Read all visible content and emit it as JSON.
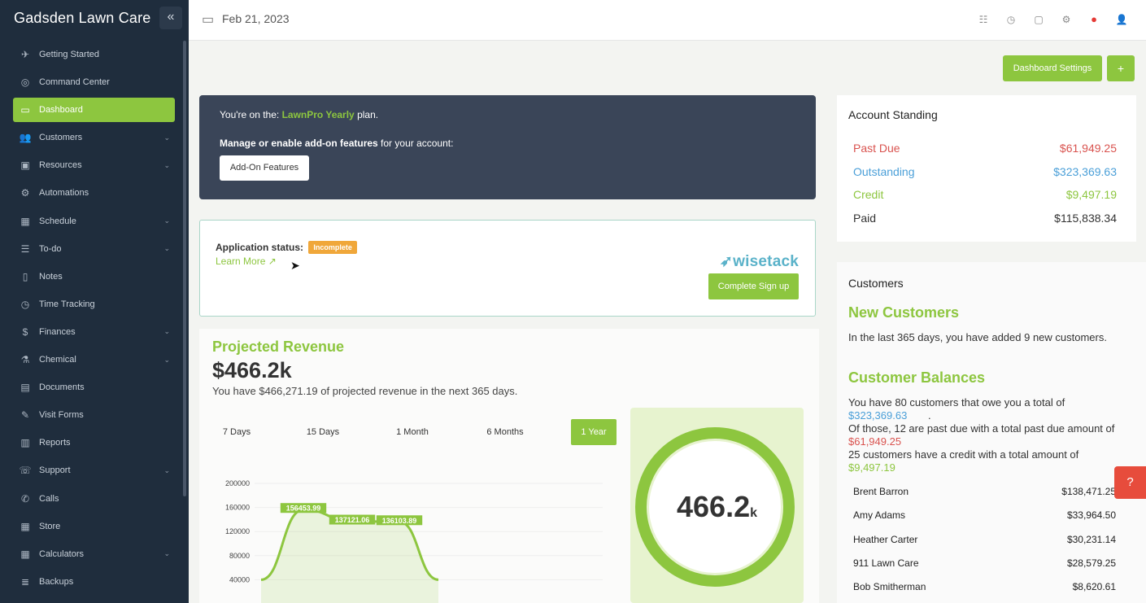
{
  "sidebar": {
    "brand": "Gadsden Lawn Care",
    "items": [
      {
        "label": "Getting Started",
        "icon": "rocket-icon",
        "glyph": "✈",
        "chevron": false
      },
      {
        "label": "Command Center",
        "icon": "command-icon",
        "glyph": "◎",
        "chevron": false
      },
      {
        "label": "Dashboard",
        "icon": "monitor-icon",
        "glyph": "▭",
        "chevron": false,
        "active": true
      },
      {
        "label": "Customers",
        "icon": "users-icon",
        "glyph": "👥",
        "chevron": true
      },
      {
        "label": "Resources",
        "icon": "box-icon",
        "glyph": "▣",
        "chevron": true
      },
      {
        "label": "Automations",
        "icon": "cogs-icon",
        "glyph": "⚙",
        "chevron": false
      },
      {
        "label": "Schedule",
        "icon": "calendar-icon",
        "glyph": "▦",
        "chevron": true
      },
      {
        "label": "To-do",
        "icon": "checklist-icon",
        "glyph": "☰",
        "chevron": true
      },
      {
        "label": "Notes",
        "icon": "clipboard-icon",
        "glyph": "▯",
        "chevron": false
      },
      {
        "label": "Time Tracking",
        "icon": "clock-icon",
        "glyph": "◷",
        "chevron": false
      },
      {
        "label": "Finances",
        "icon": "dollar-icon",
        "glyph": "$",
        "chevron": true
      },
      {
        "label": "Chemical",
        "icon": "flask-icon",
        "glyph": "⚗",
        "chevron": true
      },
      {
        "label": "Documents",
        "icon": "document-icon",
        "glyph": "▤",
        "chevron": false
      },
      {
        "label": "Visit Forms",
        "icon": "edit-icon",
        "glyph": "✎",
        "chevron": false
      },
      {
        "label": "Reports",
        "icon": "bar-chart-icon",
        "glyph": "▥",
        "chevron": false
      },
      {
        "label": "Support",
        "icon": "support-icon",
        "glyph": "☏",
        "chevron": true
      },
      {
        "label": "Calls",
        "icon": "phone-icon",
        "glyph": "✆",
        "chevron": false
      },
      {
        "label": "Store",
        "icon": "store-icon",
        "glyph": "▦",
        "chevron": false
      },
      {
        "label": "Calculators",
        "icon": "calculator-icon",
        "glyph": "▦",
        "chevron": true
      },
      {
        "label": "Backups",
        "icon": "database-icon",
        "glyph": "≣",
        "chevron": false
      }
    ]
  },
  "topbar": {
    "date": "Feb 21, 2023",
    "icons": [
      "list-icon",
      "history-icon",
      "chat-icon",
      "gear-icon",
      "record-icon",
      "user-icon"
    ]
  },
  "actions": {
    "dashboard_settings": "Dashboard Settings",
    "add": "+"
  },
  "plan": {
    "prefix": "You're on the: ",
    "plan_name": "LawnPro Yearly",
    "suffix": " plan.",
    "manage_bold": "Manage or enable add-on features",
    "manage_rest": " for your account:",
    "addon_button": "Add-On Features"
  },
  "wisetack": {
    "status_label": "Application status:",
    "status_badge": "Incomplete",
    "learn_more": "Learn More",
    "logo": "wisetack",
    "signup_button": "Complete Sign up"
  },
  "revenue": {
    "title": "Projected Revenue",
    "amount": "$466.2k",
    "description": "You have $466,271.19 of projected revenue in the next 365 days.",
    "tabs": [
      "7 Days",
      "15 Days",
      "1 Month",
      "6 Months",
      "1 Year"
    ],
    "selected_tab": "1 Year",
    "donut_value": "466.2",
    "donut_unit": "k"
  },
  "chart_data": {
    "type": "area",
    "title": "",
    "yticks": [
      200000,
      160000,
      120000,
      80000,
      40000
    ],
    "ylim": [
      0,
      200000
    ],
    "points": [
      {
        "label": "",
        "value": 40000
      },
      {
        "label": "",
        "value": 156453.99
      },
      {
        "label": "",
        "value": 137121.06
      },
      {
        "label": "",
        "value": 136103.89
      },
      {
        "label": "",
        "value": 40000
      }
    ],
    "data_labels": [
      "156453.99",
      "137121.06",
      "136103.89"
    ],
    "color": "#8dc63f"
  },
  "account": {
    "title": "Account Standing",
    "rows": [
      {
        "label": "Past Due",
        "value": "$61,949.25",
        "color": "#d9534f"
      },
      {
        "label": "Outstanding",
        "value": "$323,369.63",
        "color": "#4a9fd8"
      },
      {
        "label": "Credit",
        "value": "$9,497.19",
        "color": "#8dc63f"
      },
      {
        "label": "Paid",
        "value": "$115,838.34",
        "color": "#333333"
      }
    ]
  },
  "customers": {
    "title": "Customers",
    "new_title": "New Customers",
    "new_text": "In the last 365 days, you have added 9 new customers.",
    "balances_title": "Customer Balances",
    "bal_line1": "You have 80 customers that owe you a total of",
    "bal_total": "$323,369.63",
    "bal_line2": "Of those, 12 are past due with a total past due amount of",
    "bal_pastdue": "$61,949.25",
    "bal_line3": "25 customers have a credit with a total amount of",
    "bal_credit": "$9,497.19",
    "list": [
      {
        "name": "Brent Barron",
        "amount": "$138,471.25"
      },
      {
        "name": "Amy Adams",
        "amount": "$33,964.50"
      },
      {
        "name": "Heather Carter",
        "amount": "$30,231.14"
      },
      {
        "name": "911 Lawn Care",
        "amount": "$28,579.25"
      },
      {
        "name": "Bob Smitherman",
        "amount": "$8,620.61"
      }
    ]
  },
  "colors": {
    "accent": "#8dc63f",
    "sidebar": "#1f2d3d",
    "danger": "#d9534f",
    "info": "#4a9fd8"
  }
}
